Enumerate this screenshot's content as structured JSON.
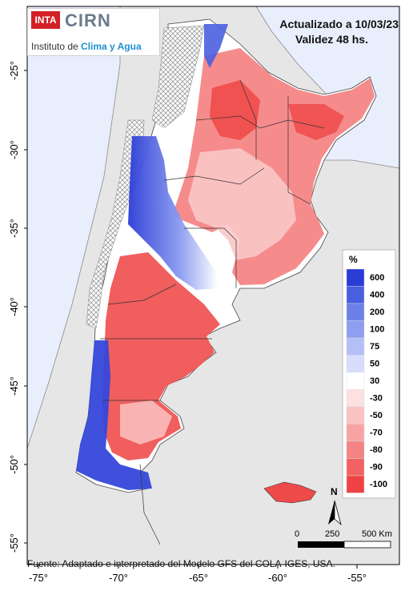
{
  "header": {
    "logo_inta": "INTA",
    "logo_cirn": "CIRN",
    "institute_prefix": "Instituto de ",
    "institute_highlight": "Clima y Agua",
    "updated": "Actualizado a 10/03/23",
    "validity": "Validez 48 hs."
  },
  "axes": {
    "lat_ticks": [
      "-25°",
      "-30°",
      "-35°",
      "-40°",
      "-45°",
      "-50°",
      "-55°"
    ],
    "lon_ticks": [
      "-75°",
      "-70°",
      "-65°",
      "-60°",
      "-55°"
    ]
  },
  "legend": {
    "unit": "%",
    "labels": [
      "600",
      "400",
      "200",
      "100",
      "75",
      "50",
      "30",
      "-30",
      "-50",
      "-70",
      "-80",
      "-90",
      "-100"
    ],
    "colors": [
      "#2a3bd6",
      "#4a5fe0",
      "#6c80e8",
      "#8e9ef0",
      "#b3bff5",
      "#d7ddfb",
      "#ffffff",
      "#fde0e0",
      "#fbc2c2",
      "#f8a3a3",
      "#f58383",
      "#f26262",
      "#ef4343"
    ]
  },
  "scale": {
    "north": "N",
    "labels": [
      "0",
      "250",
      "500 Km"
    ]
  },
  "footer": {
    "source": "Fuente: Adaptado e interpretado del Modelo GFS del COLA-IGES, USA."
  }
}
